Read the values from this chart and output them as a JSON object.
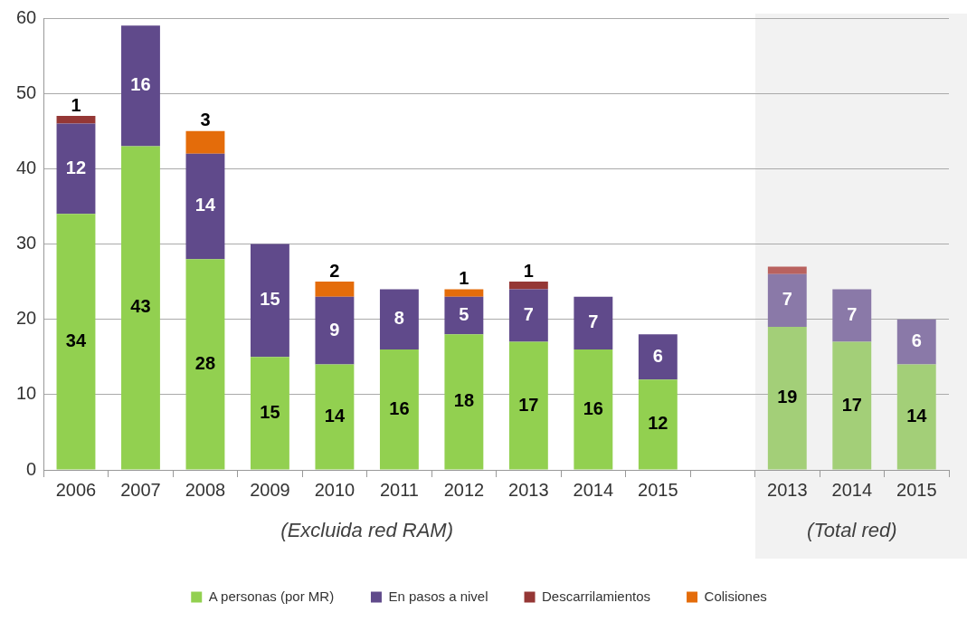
{
  "chart_data": {
    "type": "bar",
    "stacked": true,
    "categories": [
      "2006",
      "2007",
      "2008",
      "2009",
      "2010",
      "2011",
      "2012",
      "2013",
      "2014",
      "2015",
      null,
      "2013",
      "2014",
      "2015"
    ],
    "series": [
      {
        "name": "A personas (por MR)",
        "color": "#92d050",
        "colors": [
          "#92d050",
          "#92d050",
          "#92d050",
          "#92d050",
          "#92d050",
          "#92d050",
          "#92d050",
          "#92d050",
          "#92d050",
          "#92d050",
          "#92d050",
          "#a3cf78",
          "#a3cf78",
          "#a3cf78"
        ],
        "values": [
          34,
          43,
          28,
          15,
          14,
          16,
          18,
          17,
          16,
          12,
          null,
          19,
          17,
          14
        ],
        "value_labels": [
          "34",
          "43",
          "28",
          "15",
          "14",
          "16",
          "18",
          "17",
          "16",
          "12",
          null,
          "19",
          "17",
          "14"
        ]
      },
      {
        "name": "En pasos a nivel",
        "color": "#604a8b",
        "colors": [
          "#604a8b",
          "#604a8b",
          "#604a8b",
          "#604a8b",
          "#604a8b",
          "#604a8b",
          "#604a8b",
          "#604a8b",
          "#604a8b",
          "#604a8b",
          "#604a8b",
          "#8a79a8",
          "#8a79a8",
          "#8a79a8"
        ],
        "values": [
          12,
          16,
          14,
          15,
          9,
          8,
          5,
          7,
          7,
          6,
          null,
          7,
          7,
          6
        ],
        "value_labels": [
          "12",
          "16",
          "14",
          "15",
          "9",
          "8",
          "5",
          "7",
          "7",
          "6",
          null,
          "7",
          "7",
          "6"
        ]
      },
      {
        "name": "Descarrilamientos",
        "color": "#953735",
        "colors": [
          "#953735",
          "#953735",
          "#953735",
          "#953735",
          "#953735",
          "#953735",
          "#953735",
          "#953735",
          "#953735",
          "#953735",
          "#953735",
          "#b9625f",
          "#b9625f",
          "#b9625f"
        ],
        "values": [
          1,
          0,
          0,
          0,
          0,
          0,
          0,
          1,
          0,
          0,
          null,
          1,
          0,
          0
        ],
        "value_labels": [
          "1",
          null,
          null,
          null,
          null,
          null,
          null,
          "1",
          null,
          null,
          null,
          null,
          null,
          null
        ]
      },
      {
        "name": "Colisiones",
        "color": "#e46c0a",
        "values": [
          0,
          0,
          3,
          0,
          2,
          0,
          1,
          0,
          0,
          0,
          null,
          0,
          0,
          0
        ],
        "value_labels": [
          null,
          null,
          "3",
          null,
          "2",
          null,
          "1",
          null,
          null,
          null,
          null,
          null,
          null,
          null
        ]
      }
    ],
    "ylim": [
      0,
      60
    ],
    "yticks": [
      0,
      10,
      20,
      30,
      40,
      50,
      60
    ],
    "grid": "y",
    "legend": "bottom",
    "annotations": [
      "(Excluida red RAM)",
      "(Total red)"
    ]
  }
}
